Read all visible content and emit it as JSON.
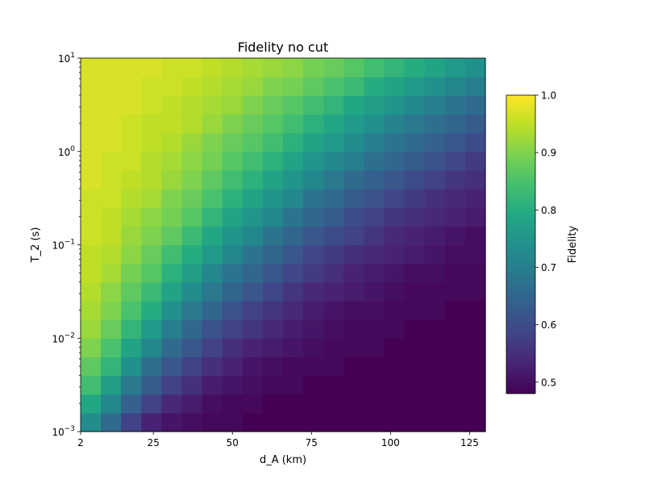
{
  "chart_data": {
    "type": "heatmap",
    "title": "Fidelity no cut",
    "xlabel": "d_A (km)",
    "ylabel": "T_2 (s)",
    "colorbar_label": "Fidelity",
    "colormap": "viridis",
    "x_range": [
      2,
      130
    ],
    "y_range": [
      0.001,
      10
    ],
    "y_scale": "log",
    "x_ticks": [
      2,
      25,
      50,
      75,
      100,
      125
    ],
    "y_ticks": [
      {
        "value": 0.001,
        "base": "10",
        "exp": "−3"
      },
      {
        "value": 0.01,
        "base": "10",
        "exp": "−2"
      },
      {
        "value": 0.1,
        "base": "10",
        "exp": "−1"
      },
      {
        "value": 1,
        "base": "10",
        "exp": "0"
      },
      {
        "value": 10,
        "base": "10",
        "exp": "1"
      }
    ],
    "color_range": [
      0.48,
      1.0
    ],
    "colorbar_ticks": [
      "0.5",
      "0.6",
      "0.7",
      "0.8",
      "0.9",
      "1.0"
    ],
    "n_x_cells": 20,
    "n_y_cells": 20,
    "x_centers": [
      5.2,
      11.6,
      18.0,
      24.4,
      30.8,
      37.2,
      43.6,
      50.0,
      56.4,
      62.8,
      69.2,
      75.6,
      82.0,
      88.4,
      94.8,
      101.2,
      107.6,
      114.0,
      120.4,
      126.8
    ],
    "y_centers": [
      0.00126,
      0.002,
      0.00316,
      0.00501,
      0.00794,
      0.0126,
      0.02,
      0.0316,
      0.0501,
      0.0794,
      0.126,
      0.2,
      0.316,
      0.501,
      0.794,
      1.26,
      2.0,
      3.16,
      5.01,
      7.94
    ],
    "values": [
      [
        0.73,
        0.66,
        0.58,
        0.53,
        0.51,
        0.5,
        0.49,
        0.49,
        0.48,
        0.48,
        0.48,
        0.48,
        0.48,
        0.48,
        0.48,
        0.48,
        0.48,
        0.48,
        0.48,
        0.48
      ],
      [
        0.79,
        0.72,
        0.64,
        0.58,
        0.54,
        0.52,
        0.5,
        0.49,
        0.49,
        0.48,
        0.48,
        0.48,
        0.48,
        0.48,
        0.48,
        0.48,
        0.48,
        0.48,
        0.48,
        0.48
      ],
      [
        0.84,
        0.77,
        0.69,
        0.63,
        0.58,
        0.55,
        0.52,
        0.51,
        0.5,
        0.49,
        0.49,
        0.48,
        0.48,
        0.48,
        0.48,
        0.48,
        0.48,
        0.48,
        0.48,
        0.48
      ],
      [
        0.87,
        0.82,
        0.74,
        0.67,
        0.62,
        0.58,
        0.55,
        0.53,
        0.51,
        0.5,
        0.49,
        0.49,
        0.49,
        0.48,
        0.48,
        0.48,
        0.48,
        0.48,
        0.48,
        0.48
      ],
      [
        0.9,
        0.85,
        0.78,
        0.72,
        0.66,
        0.62,
        0.58,
        0.55,
        0.53,
        0.52,
        0.51,
        0.5,
        0.49,
        0.49,
        0.49,
        0.48,
        0.48,
        0.48,
        0.48,
        0.48
      ],
      [
        0.92,
        0.88,
        0.82,
        0.76,
        0.7,
        0.65,
        0.61,
        0.58,
        0.56,
        0.54,
        0.52,
        0.51,
        0.5,
        0.49,
        0.49,
        0.49,
        0.48,
        0.48,
        0.48,
        0.48
      ],
      [
        0.93,
        0.9,
        0.85,
        0.8,
        0.74,
        0.69,
        0.65,
        0.61,
        0.58,
        0.56,
        0.54,
        0.52,
        0.51,
        0.5,
        0.5,
        0.49,
        0.49,
        0.49,
        0.48,
        0.48
      ],
      [
        0.94,
        0.91,
        0.87,
        0.83,
        0.78,
        0.73,
        0.69,
        0.65,
        0.62,
        0.59,
        0.56,
        0.54,
        0.53,
        0.52,
        0.51,
        0.5,
        0.49,
        0.49,
        0.49,
        0.49
      ],
      [
        0.95,
        0.93,
        0.89,
        0.86,
        0.81,
        0.77,
        0.72,
        0.68,
        0.65,
        0.62,
        0.59,
        0.57,
        0.55,
        0.53,
        0.52,
        0.51,
        0.5,
        0.5,
        0.49,
        0.49
      ],
      [
        0.95,
        0.94,
        0.91,
        0.88,
        0.84,
        0.8,
        0.76,
        0.72,
        0.68,
        0.65,
        0.62,
        0.59,
        0.57,
        0.55,
        0.54,
        0.53,
        0.52,
        0.51,
        0.5,
        0.5
      ],
      [
        0.96,
        0.95,
        0.92,
        0.9,
        0.87,
        0.83,
        0.79,
        0.75,
        0.72,
        0.68,
        0.65,
        0.62,
        0.6,
        0.58,
        0.56,
        0.54,
        0.53,
        0.52,
        0.51,
        0.5
      ],
      [
        0.96,
        0.95,
        0.93,
        0.91,
        0.89,
        0.86,
        0.82,
        0.78,
        0.75,
        0.72,
        0.68,
        0.65,
        0.63,
        0.6,
        0.58,
        0.56,
        0.55,
        0.54,
        0.53,
        0.52
      ],
      [
        0.96,
        0.96,
        0.94,
        0.93,
        0.9,
        0.88,
        0.85,
        0.81,
        0.78,
        0.75,
        0.72,
        0.68,
        0.66,
        0.63,
        0.61,
        0.59,
        0.57,
        0.55,
        0.54,
        0.53
      ],
      [
        0.97,
        0.96,
        0.95,
        0.94,
        0.92,
        0.9,
        0.87,
        0.84,
        0.81,
        0.78,
        0.75,
        0.72,
        0.69,
        0.66,
        0.64,
        0.62,
        0.6,
        0.58,
        0.56,
        0.55
      ],
      [
        0.97,
        0.96,
        0.96,
        0.94,
        0.93,
        0.91,
        0.89,
        0.86,
        0.84,
        0.81,
        0.78,
        0.75,
        0.72,
        0.7,
        0.67,
        0.65,
        0.63,
        0.61,
        0.59,
        0.57
      ],
      [
        0.97,
        0.97,
        0.96,
        0.95,
        0.94,
        0.92,
        0.9,
        0.88,
        0.86,
        0.84,
        0.81,
        0.78,
        0.76,
        0.73,
        0.7,
        0.68,
        0.66,
        0.64,
        0.62,
        0.6
      ],
      [
        0.97,
        0.97,
        0.96,
        0.95,
        0.95,
        0.94,
        0.92,
        0.9,
        0.88,
        0.86,
        0.84,
        0.81,
        0.79,
        0.76,
        0.74,
        0.71,
        0.69,
        0.67,
        0.65,
        0.63
      ],
      [
        0.97,
        0.97,
        0.97,
        0.96,
        0.95,
        0.94,
        0.93,
        0.92,
        0.9,
        0.88,
        0.86,
        0.84,
        0.82,
        0.79,
        0.77,
        0.75,
        0.72,
        0.7,
        0.68,
        0.66
      ],
      [
        0.97,
        0.97,
        0.97,
        0.96,
        0.96,
        0.95,
        0.94,
        0.93,
        0.92,
        0.9,
        0.89,
        0.87,
        0.85,
        0.83,
        0.8,
        0.78,
        0.76,
        0.74,
        0.72,
        0.7
      ],
      [
        0.97,
        0.97,
        0.97,
        0.97,
        0.96,
        0.96,
        0.95,
        0.94,
        0.93,
        0.92,
        0.91,
        0.89,
        0.88,
        0.86,
        0.84,
        0.82,
        0.8,
        0.78,
        0.76,
        0.74
      ]
    ]
  }
}
